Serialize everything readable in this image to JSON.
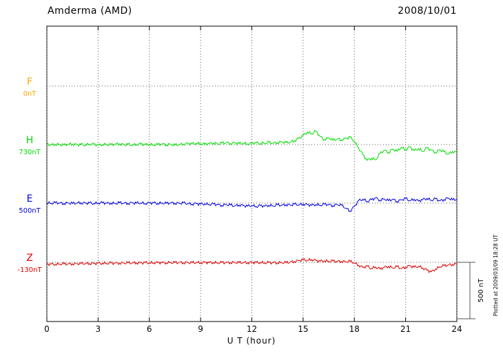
{
  "header": {
    "title": "Amderma (AMD)",
    "date": "2008/10/01"
  },
  "footer": {
    "xlabel": "U T (hour)"
  },
  "annotations": {
    "scale_bar_label": "500 nT",
    "plotted_at": "Plotted at 2009/03/09 18:28 UT"
  },
  "chart_data": {
    "type": "line",
    "title": "Amderma (AMD)",
    "subtitle": "2008/10/01",
    "xlabel": "U T (hour)",
    "x_range": [
      0,
      24
    ],
    "x_ticks": [
      0,
      3,
      6,
      9,
      12,
      15,
      18,
      21,
      24
    ],
    "sample_interval_hours": 0.25,
    "scale_nT": 500,
    "grid": "dotted vertical lines every 3 h; dotted horizontal baseline per component",
    "legend_position": "left-margin baseline labels",
    "series": [
      {
        "name": "F",
        "baseline_label": "0nT",
        "baseline_nT": 0,
        "color": "#FFA500",
        "values": []
      },
      {
        "name": "H",
        "baseline_label": "730nT",
        "baseline_nT": 730,
        "color": "#00DD00",
        "values": [
          2,
          -3,
          4,
          0,
          -5,
          3,
          6,
          -2,
          1,
          -4,
          5,
          2,
          -6,
          3,
          0,
          -3,
          4,
          8,
          -2,
          1,
          -5,
          2,
          6,
          -1,
          3,
          -4,
          0,
          5,
          -2,
          3,
          -6,
          1,
          4,
          10,
          6,
          12,
          8,
          3,
          9,
          14,
          7,
          12,
          18,
          10,
          15,
          8,
          13,
          6,
          10,
          16,
          9,
          14,
          20,
          12,
          18,
          25,
          15,
          22,
          35,
          55,
          80,
          110,
          95,
          120,
          70,
          45,
          60,
          38,
          50,
          42,
          55,
          65,
          30,
          -30,
          -90,
          -140,
          -120,
          -135,
          -80,
          -50,
          -70,
          -40,
          -60,
          -25,
          -45,
          -20,
          -55,
          -35,
          -60,
          -30,
          -50,
          -70,
          -45,
          -65,
          -85,
          -60,
          -70
        ]
      },
      {
        "name": "E",
        "baseline_label": "500nT",
        "baseline_nT": 500,
        "color": "#0000DD",
        "values": [
          2,
          -2,
          3,
          0,
          -3,
          2,
          -4,
          1,
          3,
          -2,
          2,
          -3,
          0,
          3,
          -2,
          1,
          -3,
          2,
          0,
          -2,
          3,
          -1,
          2,
          -3,
          0,
          2,
          -2,
          1,
          -3,
          2,
          0,
          -2,
          1,
          -4,
          -8,
          -5,
          -10,
          -6,
          -12,
          -8,
          -15,
          -20,
          -12,
          -18,
          -25,
          -15,
          -22,
          -28,
          -20,
          -30,
          -22,
          -28,
          -18,
          -25,
          -15,
          -20,
          -12,
          -18,
          -10,
          -15,
          -8,
          -14,
          -20,
          -12,
          -18,
          -10,
          -15,
          -22,
          -12,
          -20,
          -45,
          -70,
          -30,
          20,
          35,
          15,
          30,
          45,
          25,
          38,
          20,
          35,
          15,
          28,
          40,
          22,
          35,
          18,
          30,
          42,
          25,
          38,
          20,
          32,
          45,
          28,
          35
        ]
      },
      {
        "name": "Z",
        "baseline_label": "-130nT",
        "baseline_nT": -130,
        "color": "#DD0000",
        "values": [
          -18,
          -16,
          -17,
          -15,
          -14,
          -15,
          -13,
          -12,
          -12,
          -11,
          -10,
          -11,
          -9,
          -8,
          -9,
          -7,
          -8,
          -6,
          -7,
          -5,
          -6,
          -4,
          -5,
          -4,
          -5,
          -3,
          -4,
          -3,
          -4,
          -2,
          -3,
          -2,
          -3,
          -2,
          -4,
          -2,
          -3,
          -1,
          -3,
          -2,
          -4,
          -2,
          -3,
          -1,
          -2,
          -4,
          -2,
          -3,
          -1,
          -3,
          -2,
          -4,
          -2,
          -5,
          -3,
          -2,
          -4,
          2,
          8,
          15,
          22,
          18,
          25,
          15,
          10,
          14,
          8,
          12,
          6,
          10,
          4,
          8,
          -5,
          -25,
          -45,
          -35,
          -55,
          -40,
          -60,
          -45,
          -35,
          -50,
          -38,
          -55,
          -42,
          -30,
          -45,
          -35,
          -50,
          -70,
          -85,
          -60,
          -40,
          -30,
          -25,
          -18,
          -12
        ]
      }
    ]
  }
}
